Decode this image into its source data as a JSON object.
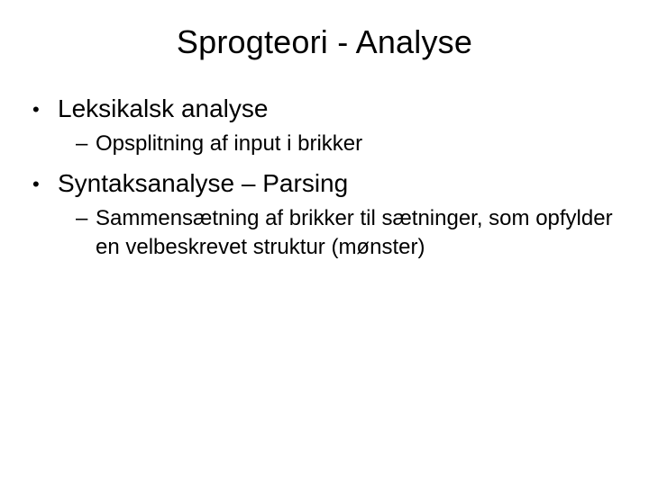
{
  "slide": {
    "title": "Sprogteori - Analyse",
    "title_fontsize": 36,
    "body_fontsize_l1": 28,
    "body_fontsize_l2": 24,
    "text_color": "#000000",
    "background_color": "#ffffff",
    "bullet_l1_glyph": "•",
    "bullet_l2_glyph": "–",
    "items": [
      {
        "label": "Leksikalsk analyse",
        "children": [
          {
            "label": "Opsplitning af input i brikker"
          }
        ]
      },
      {
        "label": "Syntaksanalyse – Parsing",
        "children": [
          {
            "label": "Sammensætning af brikker til sætninger, som opfylder en velbeskrevet struktur (mønster)"
          }
        ]
      }
    ]
  }
}
